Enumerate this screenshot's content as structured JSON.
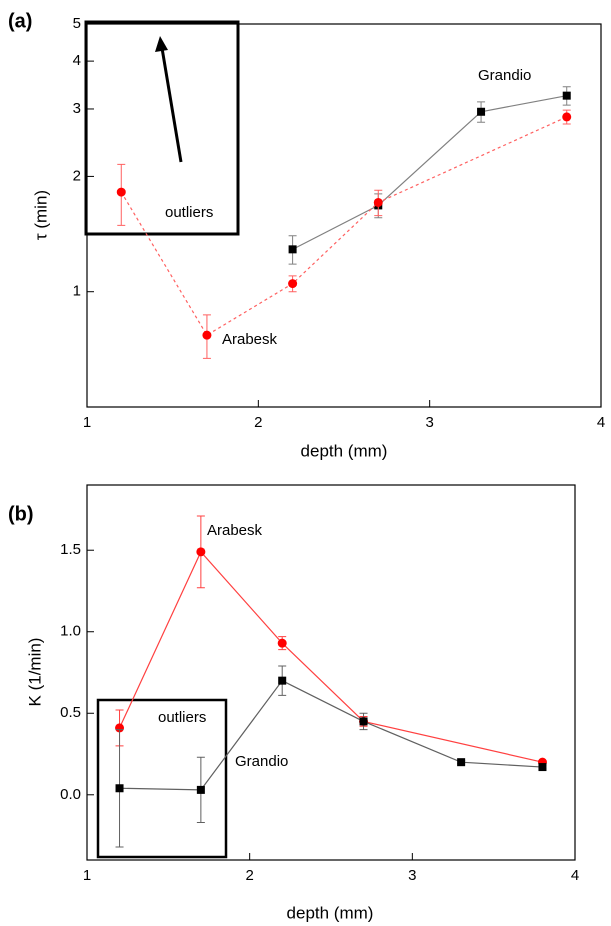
{
  "chart_data": [
    {
      "type": "line",
      "panel_label": "(a)",
      "x_label": "depth (mm)",
      "y_label": "τ (min)",
      "y_scale": "log",
      "xlim": [
        1,
        4
      ],
      "xticks": [
        1,
        2,
        3,
        4
      ],
      "ylim": [
        0.5,
        5
      ],
      "yticks": [
        1,
        2,
        3,
        4,
        5
      ],
      "outlier_note": "outliers",
      "series": [
        {
          "name": "Grandio",
          "color": "#000000",
          "line_color": "#808080",
          "marker": "square",
          "linestyle": "solid",
          "x": [
            2.2,
            2.7,
            3.3,
            3.8
          ],
          "values": [
            1.29,
            1.68,
            2.95,
            3.25
          ],
          "errors": [
            0.11,
            0.12,
            0.18,
            0.18
          ]
        },
        {
          "name": "Arabesk",
          "color": "#ff0000",
          "line_color": "#ff6060",
          "marker": "circle",
          "linestyle": "dashed",
          "x": [
            1.2,
            1.7,
            2.2,
            2.7,
            3.8
          ],
          "values": [
            1.82,
            0.77,
            1.05,
            1.71,
            2.86
          ],
          "errors": [
            0.33,
            0.1,
            0.05,
            0.13,
            0.12
          ]
        }
      ]
    },
    {
      "type": "line",
      "panel_label": "(b)",
      "x_label": "depth (mm)",
      "y_label": "K (1/min)",
      "y_scale": "linear",
      "xlim": [
        1,
        4
      ],
      "xticks": [
        1,
        2,
        3,
        4
      ],
      "ylim": [
        -0.4,
        1.9
      ],
      "yticks": [
        {
          "value": 0,
          "label": "0.0"
        },
        0.5,
        {
          "value": 1,
          "label": "1.0"
        },
        1.5
      ],
      "outlier_note": "outliers",
      "series": [
        {
          "name": "Arabesk",
          "color": "#ff0000",
          "line_color": "#ff4040",
          "marker": "circle",
          "linestyle": "solid",
          "x": [
            1.2,
            1.7,
            2.2,
            2.7,
            3.8
          ],
          "values": [
            0.41,
            1.49,
            0.93,
            0.45,
            0.2
          ],
          "errors": [
            0.11,
            0.22,
            0.04,
            0.03,
            0.01
          ]
        },
        {
          "name": "Grandio",
          "color": "#000000",
          "line_color": "#606060",
          "marker": "square",
          "linestyle": "solid",
          "x": [
            1.2,
            1.7,
            2.2,
            2.7,
            3.3,
            3.8
          ],
          "values": [
            0.04,
            0.03,
            0.7,
            0.45,
            0.2,
            0.17
          ],
          "errors": [
            0.36,
            0.2,
            0.09,
            0.05,
            0.01,
            0.01
          ]
        }
      ]
    }
  ]
}
